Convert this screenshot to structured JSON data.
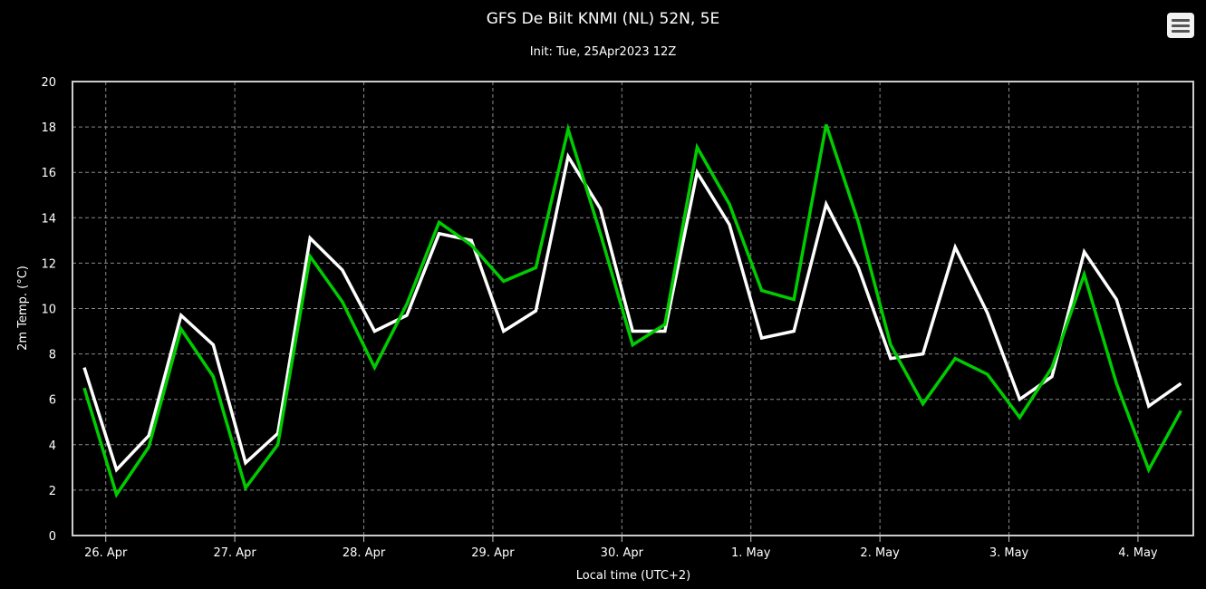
{
  "chart_data": {
    "type": "line",
    "title": "GFS De Bilt KNMI (NL) 52N, 5E",
    "subtitle": "Init: Tue, 25Apr2023 12Z",
    "xlabel": "Local time (UTC+2)",
    "ylabel": "2m Temp. (°C)",
    "ylim": [
      0,
      20
    ],
    "yticks": [
      0,
      2,
      4,
      6,
      8,
      10,
      12,
      14,
      16,
      18,
      20
    ],
    "x_start": "2023-04-25 20:00",
    "x_step_hours": 6,
    "x_day_ticks": [
      {
        "label": "26. Apr",
        "x_index": 0.6667
      },
      {
        "label": "27. Apr",
        "x_index": 4.6667
      },
      {
        "label": "28. Apr",
        "x_index": 8.6667
      },
      {
        "label": "29. Apr",
        "x_index": 12.6667
      },
      {
        "label": "30. Apr",
        "x_index": 16.6667
      },
      {
        "label": "1. May",
        "x_index": 20.6667
      },
      {
        "label": "2. May",
        "x_index": 24.6667
      },
      {
        "label": "3. May",
        "x_index": 28.6667
      },
      {
        "label": "4. May",
        "x_index": 32.6667
      }
    ],
    "grid": true,
    "background": "#000000",
    "series": [
      {
        "color": "#ffffff",
        "values": [
          7.4,
          2.9,
          4.4,
          9.7,
          8.4,
          3.2,
          4.5,
          13.1,
          11.7,
          9.0,
          9.7,
          13.3,
          13.0,
          9.0,
          9.9,
          16.7,
          14.4,
          9.0,
          9.0,
          16.0,
          13.7,
          8.7,
          9.0,
          14.6,
          11.8,
          7.8,
          8.0,
          12.7,
          9.8,
          6.0,
          7.0,
          12.5,
          10.4,
          5.7,
          6.7
        ]
      },
      {
        "color": "#00cc00",
        "values": [
          6.5,
          1.8,
          3.9,
          9.1,
          7.0,
          2.1,
          4.0,
          12.3,
          10.3,
          7.4,
          10.2,
          13.8,
          12.8,
          11.2,
          11.8,
          17.9,
          13.3,
          8.4,
          9.3,
          17.1,
          14.6,
          10.8,
          10.4,
          18.1,
          13.8,
          8.4,
          5.8,
          7.8,
          7.1,
          5.2,
          7.4,
          11.5,
          6.7,
          2.9,
          5.5
        ]
      }
    ]
  },
  "ui": {
    "menu_icon": "hamburger-menu-icon"
  }
}
